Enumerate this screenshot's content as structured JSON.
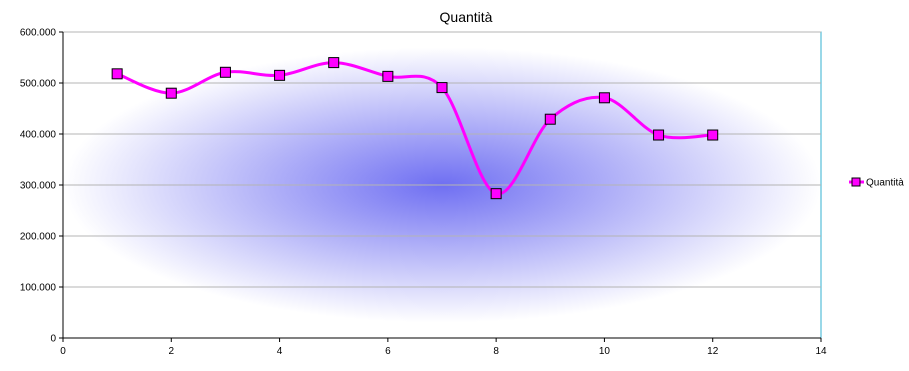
{
  "chart_data": {
    "type": "line",
    "title": "Quantità",
    "xlabel": "",
    "ylabel": "",
    "xlim": [
      0,
      14
    ],
    "ylim": [
      0,
      600000
    ],
    "x_ticks": [
      0,
      2,
      4,
      6,
      8,
      10,
      12,
      14
    ],
    "y_ticks": [
      0,
      100000,
      200000,
      300000,
      400000,
      500000,
      600000
    ],
    "y_tick_labels": [
      "0",
      "100.000",
      "200.000",
      "300.000",
      "400.000",
      "500.000",
      "600.000"
    ],
    "grid": "horizontal",
    "smooth": true,
    "legend_position": "right",
    "colors": {
      "line": "#ff00ff",
      "marker_fill": "#ff00ff",
      "marker_stroke": "#000000",
      "plot_center": "#6f6ff2",
      "plot_edge": "#ffffff",
      "plot_border": "#33b2d0",
      "gridline": "#b4b4b4"
    },
    "series": [
      {
        "name": "Quantità",
        "marker": "square",
        "x": [
          1,
          2,
          3,
          4,
          5,
          6,
          7,
          8,
          9,
          10,
          11,
          12
        ],
        "y": [
          518000,
          480000,
          521000,
          515000,
          540000,
          513000,
          491000,
          283000,
          429000,
          471000,
          398000,
          398000
        ]
      }
    ]
  }
}
